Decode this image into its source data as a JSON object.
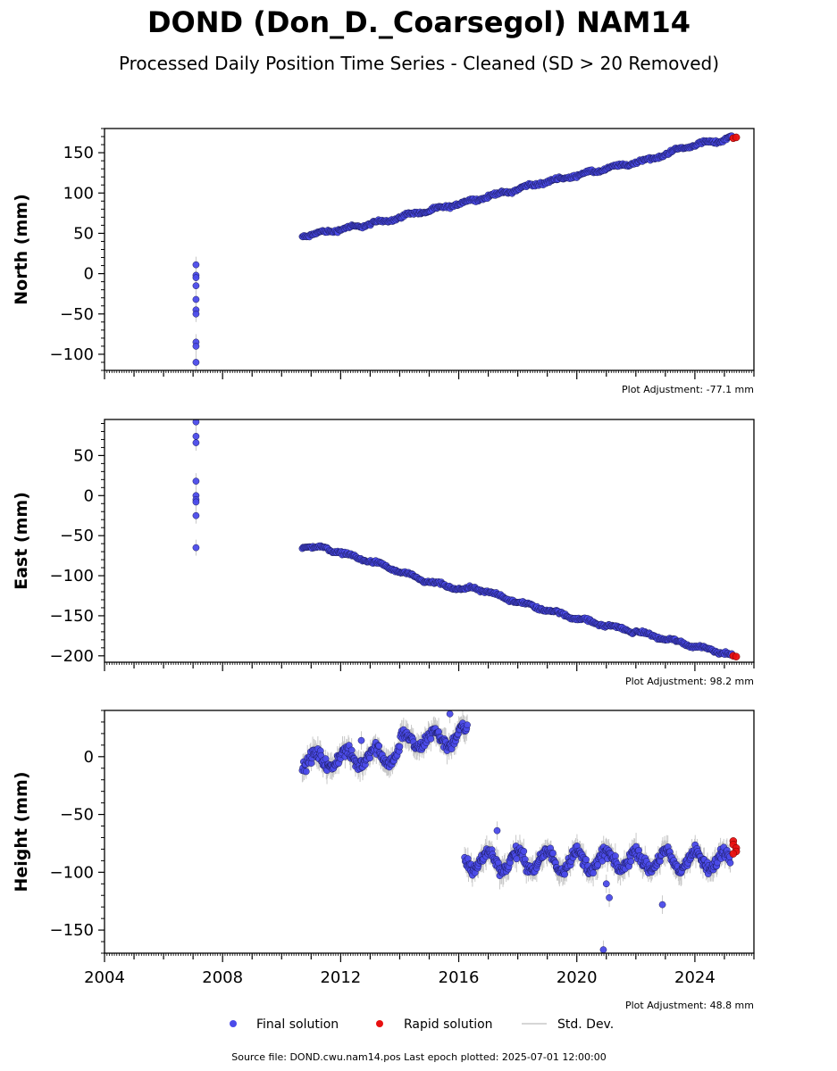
{
  "title": "DOND (Don_D._Coarsegol) NAM14",
  "subtitle": "Processed Daily Position Time Series - Cleaned (SD > 20 Removed)",
  "legend": {
    "final_label": "Final solution",
    "rapid_label": "Rapid solution",
    "std_label": "Std. Dev."
  },
  "source_text": "Source file: DOND.cwu.nam14.pos  Last epoch plotted: 2025-07-01 12:00:00",
  "colors": {
    "final": "#4b4bea",
    "final_edge": "#1a1a5a",
    "rapid": "#e81010",
    "std": "#c8c8c8"
  },
  "chart_data": [
    {
      "type": "scatter",
      "ylabel": "North (mm)",
      "xlim": [
        2004,
        2026
      ],
      "ylim": [
        -120,
        180
      ],
      "yticks": [
        150,
        100,
        50,
        0,
        -50,
        -100
      ],
      "ytick_labels": [
        "150",
        "100",
        "50",
        "0",
        "−50",
        "−100"
      ],
      "adjustment": "Plot Adjustment: -77.1 mm",
      "early_x": 2007.1,
      "early_y": [
        11,
        -2,
        -5,
        -15,
        -32,
        -45,
        -50,
        -85,
        -90,
        -110
      ],
      "series": [
        {
          "name": "Final solution",
          "x": [
            2010.7,
            2011.0,
            2011.5,
            2012.0,
            2012.5,
            2013.0,
            2013.5,
            2014.0,
            2014.5,
            2015.0,
            2015.5,
            2016.0,
            2016.5,
            2017.0,
            2017.5,
            2018.0,
            2018.5,
            2019.0,
            2019.5,
            2020.0,
            2020.5,
            2021.0,
            2021.5,
            2022.0,
            2022.5,
            2023.0,
            2023.5,
            2024.0,
            2024.5,
            2025.0,
            2025.2
          ],
          "y": [
            47,
            48,
            52,
            55,
            58,
            62,
            65,
            70,
            75,
            78,
            82,
            87,
            91,
            96,
            100,
            105,
            110,
            114,
            118,
            122,
            126,
            130,
            134,
            138,
            142,
            148,
            155,
            160,
            163,
            166,
            170
          ]
        },
        {
          "name": "Rapid solution",
          "x": [
            2025.3,
            2025.4
          ],
          "y": [
            168,
            169
          ]
        }
      ]
    },
    {
      "type": "scatter",
      "ylabel": "East (mm)",
      "xlim": [
        2004,
        2026
      ],
      "ylim": [
        -208,
        95
      ],
      "yticks": [
        50,
        0,
        -50,
        -100,
        -150,
        -200
      ],
      "ytick_labels": [
        "50",
        "0",
        "−50",
        "−100",
        "−150",
        "−200"
      ],
      "adjustment": "Plot Adjustment: 98.2 mm",
      "early_x": 2007.1,
      "early_y": [
        92,
        74,
        66,
        18,
        0,
        -5,
        -8,
        -25,
        -65
      ],
      "series": [
        {
          "name": "Final solution",
          "x": [
            2010.7,
            2011.0,
            2011.5,
            2012.0,
            2012.5,
            2013.0,
            2013.5,
            2014.0,
            2014.5,
            2015.0,
            2015.5,
            2016.0,
            2016.5,
            2017.0,
            2017.5,
            2018.0,
            2018.5,
            2019.0,
            2019.5,
            2020.0,
            2020.5,
            2021.0,
            2021.5,
            2022.0,
            2022.5,
            2023.0,
            2023.5,
            2024.0,
            2024.5,
            2025.0,
            2025.2
          ],
          "y": [
            -63,
            -64,
            -66,
            -71,
            -77,
            -82,
            -88,
            -95,
            -102,
            -108,
            -112,
            -117,
            -116,
            -120,
            -127,
            -133,
            -138,
            -143,
            -148,
            -153,
            -158,
            -162,
            -166,
            -170,
            -174,
            -179,
            -183,
            -188,
            -192,
            -196,
            -198
          ]
        },
        {
          "name": "Rapid solution",
          "x": [
            2025.3,
            2025.4
          ],
          "y": [
            -200,
            -201
          ]
        }
      ]
    },
    {
      "type": "scatter",
      "ylabel": "Height (mm)",
      "xlim": [
        2004,
        2026
      ],
      "ylim": [
        -170,
        40
      ],
      "yticks": [
        0,
        -50,
        -100,
        -150
      ],
      "ytick_labels": [
        "0",
        "−50",
        "−100",
        "−150"
      ],
      "xtick_labels": [
        "2004",
        "2008",
        "2012",
        "2016",
        "2020",
        "2024"
      ],
      "adjustment": "Plot Adjustment: 48.8 mm",
      "segment1": {
        "x_start": 2010.7,
        "x_end": 2016.3,
        "y_start": -5,
        "y_end": 8
      },
      "segment2": {
        "x_start": 2016.2,
        "x_end": 2025.2,
        "y_mean": -90
      },
      "outliers": [
        {
          "x": 2015.7,
          "y": 37
        },
        {
          "x": 2012.7,
          "y": 14
        },
        {
          "x": 2017.3,
          "y": -64
        },
        {
          "x": 2021.0,
          "y": -110
        },
        {
          "x": 2021.1,
          "y": -122
        },
        {
          "x": 2022.9,
          "y": -128
        },
        {
          "x": 2020.9,
          "y": -167
        }
      ],
      "series": [
        {
          "name": "Rapid solution",
          "x": [
            2025.3,
            2025.3,
            2025.4,
            2025.4,
            2025.3
          ],
          "y": [
            -73,
            -76,
            -79,
            -82,
            -84
          ]
        }
      ]
    }
  ]
}
